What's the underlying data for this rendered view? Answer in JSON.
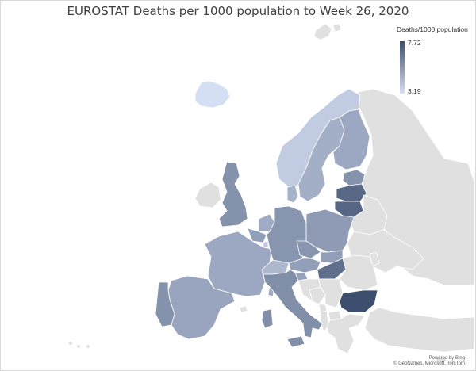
{
  "title": "EUROSTAT Deaths per 1000 population to Week 26, 2020",
  "legend": {
    "title": "Deaths/1000 population",
    "max": "7.72",
    "min": "3.19",
    "color_high": "#3e4e6e",
    "color_low": "#d5dff3"
  },
  "no_data_color": "#e0e0e0",
  "credits": {
    "line1": "Powered by Bing",
    "line2": "© GeoNames, Microsoft, TomTom"
  },
  "chart_data": {
    "type": "choropleth",
    "metric": "Deaths per 1000 population",
    "range": [
      3.19,
      7.72
    ],
    "regions": [
      {
        "name": "Iceland",
        "value": 3.19
      },
      {
        "name": "Ireland",
        "value": null
      },
      {
        "name": "Norway",
        "value": 3.8
      },
      {
        "name": "Sweden",
        "value": 4.7
      },
      {
        "name": "Finland",
        "value": 4.9
      },
      {
        "name": "Estonia",
        "value": 5.6
      },
      {
        "name": "Latvia",
        "value": 6.9
      },
      {
        "name": "Lithuania",
        "value": 7.0
      },
      {
        "name": "United Kingdom",
        "value": 5.6
      },
      {
        "name": "Denmark",
        "value": 4.6
      },
      {
        "name": "Netherlands",
        "value": 4.8
      },
      {
        "name": "Belgium",
        "value": 5.2
      },
      {
        "name": "Luxembourg",
        "value": 3.9
      },
      {
        "name": "France",
        "value": 4.9
      },
      {
        "name": "Germany",
        "value": 5.5
      },
      {
        "name": "Poland",
        "value": 5.3
      },
      {
        "name": "Czechia",
        "value": 5.5
      },
      {
        "name": "Slovakia",
        "value": 5.2
      },
      {
        "name": "Austria",
        "value": 5.2
      },
      {
        "name": "Switzerland",
        "value": 4.4
      },
      {
        "name": "Hungary",
        "value": 6.7
      },
      {
        "name": "Slovenia",
        "value": 5.1
      },
      {
        "name": "Croatia",
        "value": null
      },
      {
        "name": "Italy",
        "value": 5.7
      },
      {
        "name": "Spain",
        "value": 5.0
      },
      {
        "name": "Portugal",
        "value": 5.6
      },
      {
        "name": "Bulgaria",
        "value": 7.72
      },
      {
        "name": "Belarus",
        "value": null
      },
      {
        "name": "Ukraine",
        "value": null
      },
      {
        "name": "Russia",
        "value": null
      },
      {
        "name": "Romania",
        "value": null
      },
      {
        "name": "Serbia",
        "value": null
      },
      {
        "name": "Bosnia and Herzegovina",
        "value": null
      },
      {
        "name": "Montenegro",
        "value": null
      },
      {
        "name": "Albania",
        "value": null
      },
      {
        "name": "North Macedonia",
        "value": null
      },
      {
        "name": "Greece",
        "value": null
      },
      {
        "name": "Turkey",
        "value": null
      },
      {
        "name": "Moldova",
        "value": null
      },
      {
        "name": "Svalbard",
        "value": null
      },
      {
        "name": "Corsica",
        "value": 4.9
      },
      {
        "name": "Sardinia",
        "value": 5.7
      },
      {
        "name": "Sicily",
        "value": 5.7
      },
      {
        "name": "Cyprus",
        "value": null
      }
    ]
  }
}
